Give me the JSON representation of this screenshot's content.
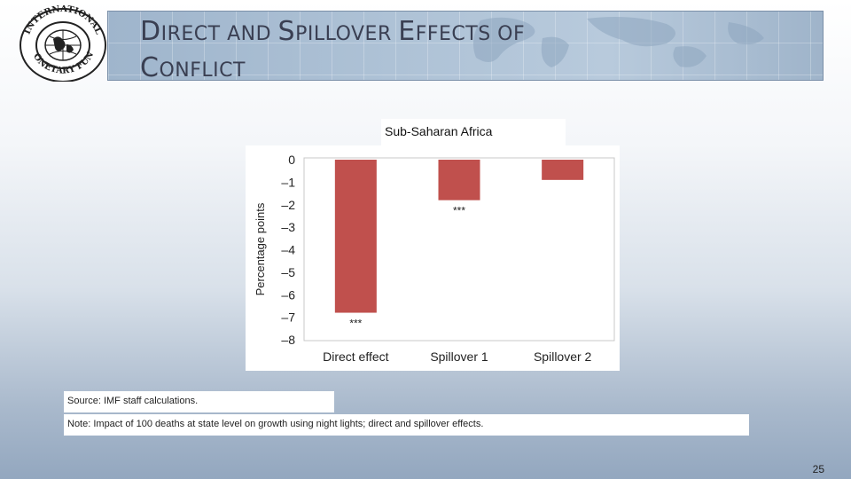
{
  "slide": {
    "title_line1_cap1": "D",
    "title_line1_rest1": "IRECT AND ",
    "title_line1_cap2": "S",
    "title_line1_rest2": "PILLOVER ",
    "title_line1_cap3": "E",
    "title_line1_rest3": "FFECTS OF",
    "title_line2_cap": "C",
    "title_line2_rest": "ONFLICT",
    "source": "Source: IMF staff calculations.",
    "note": "Note: Impact of 100 deaths at state level on growth using night lights; direct and spillover effects.",
    "page_number": "25"
  },
  "logo": {
    "ring_text": "INTERNATIONAL MONETARY FUND",
    "icon": "imf-seal-icon"
  },
  "chart_data": {
    "type": "bar",
    "title": "Sub-Saharan Africa",
    "ylabel": "Percentage points",
    "xlabel": "",
    "categories": [
      "Direct effect",
      "Spillover 1",
      "Spillover 2"
    ],
    "values": [
      -6.8,
      -1.8,
      -0.9
    ],
    "significance": [
      "***",
      "***",
      ""
    ],
    "ylim": [
      -8,
      0
    ],
    "yticks": [
      0,
      -1,
      -2,
      -3,
      -4,
      -5,
      -6,
      -7,
      -8
    ],
    "ytick_labels": [
      "0",
      "–1",
      "–2",
      "–3",
      "–4",
      "–5",
      "–6",
      "–7",
      "–8"
    ],
    "bar_color": "#c0504d",
    "grid": false
  }
}
